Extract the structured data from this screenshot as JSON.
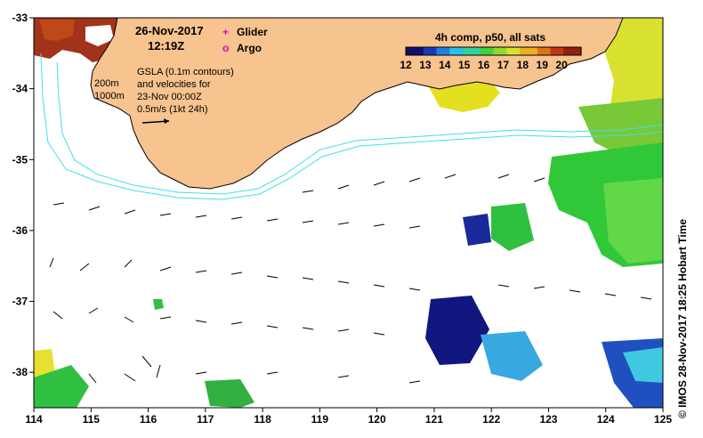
{
  "header": {
    "date": "26-Nov-2017",
    "time": "12:19Z"
  },
  "legend_markers": {
    "glider": {
      "label": "Glider",
      "symbol": "+",
      "color": "#e000c8"
    },
    "argo": {
      "label": "Argo",
      "symbol": "o",
      "color": "#e000c8"
    }
  },
  "contours": {
    "depth_200": "200m",
    "depth_1000": "1000m",
    "isobath_color": "#40e0e8"
  },
  "gsla_note": {
    "line1": "GSLA (0.1m contours)",
    "line2": "and velocities for",
    "line3": "23-Nov 00:00Z",
    "line4": "0.5m/s (1kt 24h)"
  },
  "colorbar": {
    "title": "4h comp, p50, all sats",
    "ticks": [
      "12",
      "13",
      "14",
      "15",
      "16",
      "17",
      "18",
      "19",
      "20"
    ],
    "min": 12,
    "max": 21
  },
  "axes": {
    "x_ticks": [
      "114",
      "115",
      "116",
      "117",
      "118",
      "119",
      "120",
      "121",
      "122",
      "123",
      "124",
      "125"
    ],
    "y_ticks": [
      "-33",
      "-34",
      "-35",
      "-36",
      "-37",
      "-38"
    ],
    "lon_range": [
      114,
      125
    ],
    "lat_range": [
      -38.5,
      -33
    ]
  },
  "credit": "© IMOS 28-Nov-2017 18:25 Hobart Time",
  "colors": {
    "land": "#f7c38e",
    "ocean": "#ffffff",
    "coast": "#000000"
  }
}
